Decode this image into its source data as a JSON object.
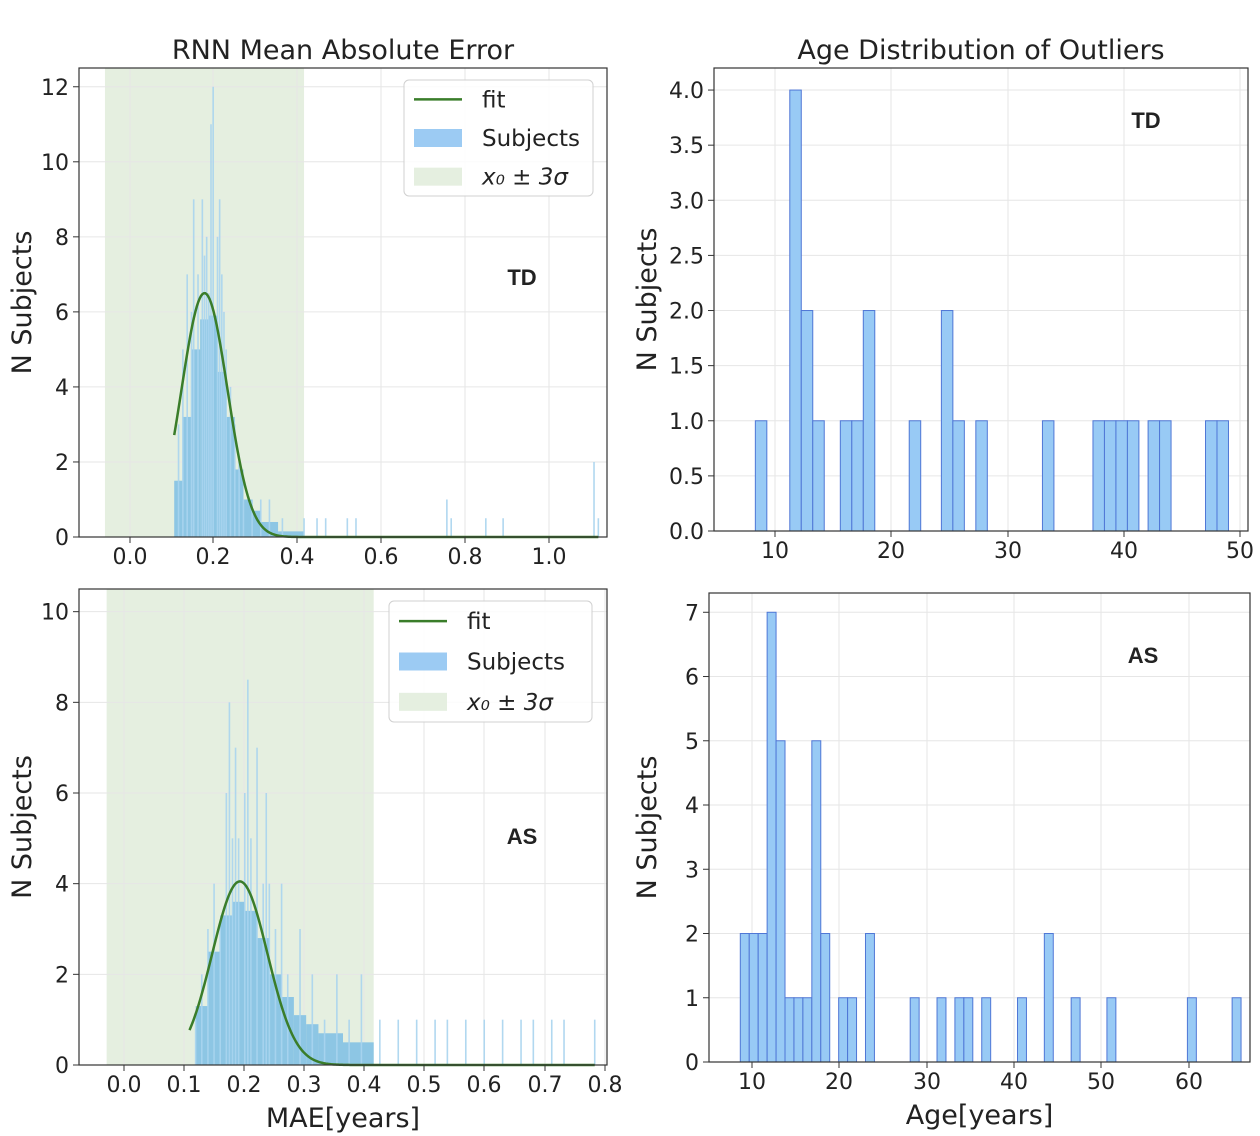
{
  "chart_data": [
    {
      "panel": "top-left",
      "type": "bar",
      "title": "RNN Mean Absolute Error",
      "xlabel": "",
      "ylabel": "N Subjects",
      "annotation": "TD",
      "xlim": [
        -0.12,
        1.1
      ],
      "ylim": [
        0,
        12.5
      ],
      "xticks": [
        "0.0",
        "0.2",
        "0.4",
        "0.6",
        "0.8",
        "1.0"
      ],
      "yticks": [
        "0",
        "2",
        "4",
        "6",
        "8",
        "10",
        "12"
      ],
      "grid": true,
      "legend_position": "top-right",
      "legend": {
        "fit": "fit",
        "subjects": "Subjects",
        "band": "x₀ ± 3σ"
      },
      "band": [
        -0.06,
        0.4
      ],
      "fit": {
        "mu": 0.17,
        "sigma": 0.053,
        "amplitude": 6.5,
        "xmin": 0.1,
        "xmax": 1.08
      },
      "histogram": {
        "dense": [
          [
            0.1,
            0.12,
            1.5
          ],
          [
            0.12,
            0.14,
            3.2
          ],
          [
            0.14,
            0.16,
            5.0
          ],
          [
            0.16,
            0.18,
            5.8
          ],
          [
            0.18,
            0.2,
            5.9
          ],
          [
            0.2,
            0.22,
            4.4
          ],
          [
            0.22,
            0.24,
            3.2
          ],
          [
            0.24,
            0.26,
            1.8
          ],
          [
            0.26,
            0.28,
            1.0
          ],
          [
            0.28,
            0.3,
            0.7
          ],
          [
            0.3,
            0.34,
            0.4
          ],
          [
            0.34,
            0.4,
            0.15
          ]
        ],
        "spikes": [
          [
            0.11,
            3
          ],
          [
            0.12,
            5
          ],
          [
            0.13,
            7
          ],
          [
            0.14,
            6
          ],
          [
            0.145,
            9
          ],
          [
            0.155,
            7
          ],
          [
            0.165,
            9
          ],
          [
            0.17,
            7.5
          ],
          [
            0.175,
            8
          ],
          [
            0.18,
            6.5
          ],
          [
            0.185,
            11
          ],
          [
            0.19,
            12
          ],
          [
            0.2,
            8
          ],
          [
            0.205,
            9
          ],
          [
            0.21,
            7
          ],
          [
            0.215,
            6
          ],
          [
            0.22,
            5
          ],
          [
            0.23,
            4
          ],
          [
            0.24,
            3
          ],
          [
            0.25,
            2
          ],
          [
            0.26,
            1
          ],
          [
            0.28,
            1
          ],
          [
            0.3,
            1
          ],
          [
            0.32,
            1
          ],
          [
            0.35,
            0.5
          ],
          [
            0.4,
            0.5
          ],
          [
            0.43,
            0.5
          ],
          [
            0.45,
            0.5
          ],
          [
            0.5,
            0.5
          ],
          [
            0.52,
            0.5
          ],
          [
            0.73,
            1
          ],
          [
            0.74,
            0.5
          ],
          [
            0.82,
            0.5
          ],
          [
            0.86,
            0.5
          ],
          [
            1.07,
            2
          ],
          [
            1.08,
            0.5
          ]
        ]
      }
    },
    {
      "panel": "top-right",
      "type": "bar",
      "title": "Age Distribution of Outliers",
      "xlabel": "",
      "ylabel": "N Subjects",
      "annotation": "TD",
      "xlim": [
        4,
        50.5
      ],
      "ylim": [
        0,
        4.2
      ],
      "xticks": [
        "10",
        "20",
        "30",
        "40",
        "50"
      ],
      "yticks": [
        "0.0",
        "0.5",
        "1.0",
        "1.5",
        "2.0",
        "2.5",
        "3.0",
        "3.5",
        "4.0"
      ],
      "grid": true,
      "bin_width": 1.0,
      "bars": [
        [
          7.6,
          1
        ],
        [
          10.6,
          4
        ],
        [
          11.6,
          2
        ],
        [
          12.6,
          1
        ],
        [
          15.0,
          1
        ],
        [
          16.0,
          1
        ],
        [
          17.0,
          2
        ],
        [
          21.0,
          1
        ],
        [
          23.8,
          2
        ],
        [
          24.8,
          1
        ],
        [
          26.8,
          1
        ],
        [
          32.6,
          1
        ],
        [
          37.0,
          1
        ],
        [
          38.0,
          1
        ],
        [
          39.0,
          1
        ],
        [
          40.0,
          1
        ],
        [
          41.8,
          1
        ],
        [
          42.8,
          1
        ],
        [
          46.8,
          1
        ],
        [
          47.8,
          1
        ]
      ]
    },
    {
      "panel": "bottom-left",
      "type": "bar",
      "title": "",
      "xlabel": "MAE[years]",
      "ylabel": "N Subjects",
      "annotation": "AS",
      "xlim": [
        -0.08,
        0.78
      ],
      "ylim": [
        0,
        10.5
      ],
      "xticks": [
        "0.0",
        "0.1",
        "0.2",
        "0.3",
        "0.4",
        "0.5",
        "0.6",
        "0.7",
        "0.8"
      ],
      "yticks": [
        "0",
        "2",
        "4",
        "6",
        "8",
        "10"
      ],
      "grid": true,
      "legend_position": "top-right",
      "legend": {
        "fit": "fit",
        "subjects": "Subjects",
        "band": "x₀ ± 3σ"
      },
      "band": [
        -0.035,
        0.4
      ],
      "fit": {
        "mu": 0.182,
        "sigma": 0.045,
        "amplitude": 4.05,
        "xmin": 0.1,
        "xmax": 0.76
      },
      "histogram": {
        "dense": [
          [
            0.11,
            0.13,
            1.3
          ],
          [
            0.13,
            0.15,
            2.5
          ],
          [
            0.15,
            0.17,
            3.3
          ],
          [
            0.17,
            0.19,
            3.6
          ],
          [
            0.19,
            0.21,
            3.4
          ],
          [
            0.21,
            0.23,
            2.8
          ],
          [
            0.23,
            0.25,
            2.0
          ],
          [
            0.25,
            0.27,
            1.5
          ],
          [
            0.27,
            0.29,
            1.1
          ],
          [
            0.29,
            0.31,
            0.9
          ],
          [
            0.31,
            0.35,
            0.7
          ],
          [
            0.35,
            0.4,
            0.5
          ]
        ],
        "spikes": [
          [
            0.11,
            1
          ],
          [
            0.12,
            2
          ],
          [
            0.13,
            3
          ],
          [
            0.14,
            4
          ],
          [
            0.15,
            3
          ],
          [
            0.16,
            6
          ],
          [
            0.165,
            8
          ],
          [
            0.17,
            5
          ],
          [
            0.175,
            7
          ],
          [
            0.18,
            5
          ],
          [
            0.19,
            6
          ],
          [
            0.195,
            8.5
          ],
          [
            0.2,
            5
          ],
          [
            0.21,
            7
          ],
          [
            0.22,
            4
          ],
          [
            0.225,
            6
          ],
          [
            0.23,
            4
          ],
          [
            0.24,
            3
          ],
          [
            0.25,
            4
          ],
          [
            0.26,
            2
          ],
          [
            0.28,
            3
          ],
          [
            0.3,
            2
          ],
          [
            0.32,
            1
          ],
          [
            0.34,
            2
          ],
          [
            0.36,
            1
          ],
          [
            0.38,
            2
          ],
          [
            0.41,
            1
          ],
          [
            0.44,
            1
          ],
          [
            0.47,
            1
          ],
          [
            0.5,
            1
          ],
          [
            0.52,
            1
          ],
          [
            0.55,
            1
          ],
          [
            0.58,
            1
          ],
          [
            0.61,
            1
          ],
          [
            0.64,
            1
          ],
          [
            0.66,
            1
          ],
          [
            0.69,
            1
          ],
          [
            0.71,
            1
          ],
          [
            0.76,
            1
          ]
        ]
      }
    },
    {
      "panel": "bottom-right",
      "type": "bar",
      "title": "",
      "xlabel": "Age[years]",
      "ylabel": "N Subjects",
      "annotation": "AS",
      "xlim": [
        5,
        65.5
      ],
      "ylim": [
        0,
        7.3
      ],
      "xticks": [
        "10",
        "20",
        "30",
        "40",
        "50",
        "60"
      ],
      "yticks": [
        "0",
        "1",
        "2",
        "3",
        "4",
        "5",
        "6",
        "7"
      ],
      "grid": true,
      "bin_width": 1.0,
      "bars": [
        [
          8.5,
          2
        ],
        [
          9.5,
          2
        ],
        [
          10.5,
          2
        ],
        [
          11.5,
          7
        ],
        [
          12.5,
          5
        ],
        [
          13.5,
          1
        ],
        [
          14.5,
          1
        ],
        [
          15.5,
          1
        ],
        [
          16.5,
          5
        ],
        [
          17.5,
          2
        ],
        [
          19.5,
          1
        ],
        [
          20.5,
          1
        ],
        [
          22.5,
          2
        ],
        [
          27.5,
          1
        ],
        [
          30.5,
          1
        ],
        [
          32.5,
          1
        ],
        [
          33.5,
          1
        ],
        [
          35.5,
          1
        ],
        [
          39.5,
          1
        ],
        [
          42.5,
          2
        ],
        [
          45.5,
          1
        ],
        [
          49.5,
          1
        ],
        [
          58.5,
          1
        ],
        [
          63.5,
          1
        ]
      ]
    }
  ]
}
